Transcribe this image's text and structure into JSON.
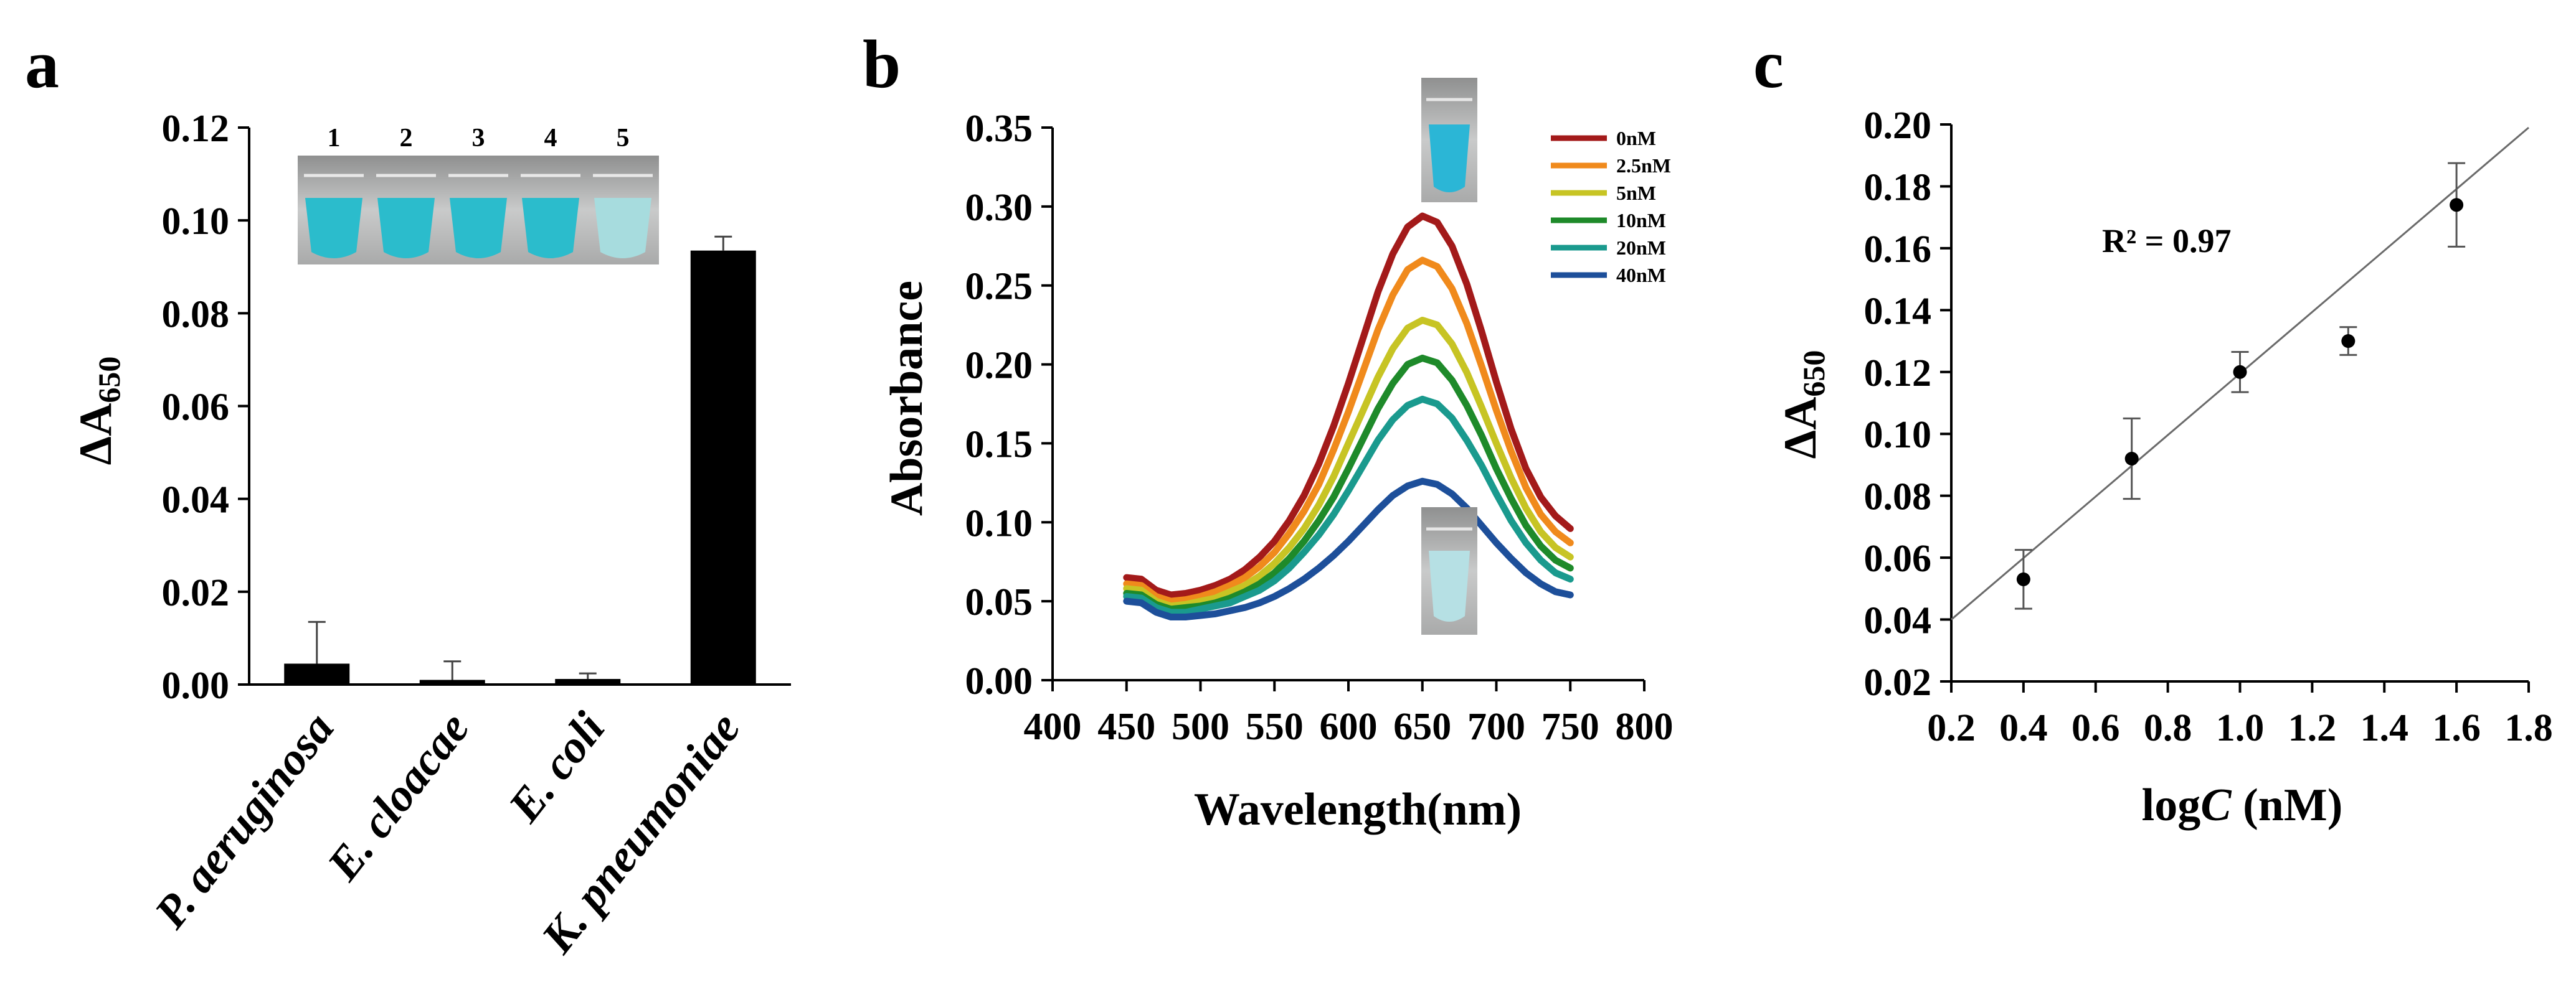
{
  "chart_data": [
    {
      "panel": "a",
      "type": "bar",
      "ylabel": "ΔA650",
      "ylabel_main": "ΔA",
      "ylabel_sub": "650",
      "ylim": [
        0,
        0.12
      ],
      "yticks": [
        "0.00",
        "0.02",
        "0.04",
        "0.06",
        "0.08",
        "0.10",
        "0.12"
      ],
      "categories": [
        "P. aeruginosa",
        "E. cloacae",
        "E. coli",
        "K. pneumoniae"
      ],
      "values": [
        0.0045,
        0.001,
        0.0012,
        0.0935
      ],
      "errors": [
        0.009,
        0.004,
        0.0012,
        0.003
      ],
      "inset_tube_labels": [
        "1",
        "2",
        "3",
        "4",
        "5"
      ],
      "tube_colors": [
        "#2bbccc",
        "#2bbccc",
        "#2bbccc",
        "#2bbccc",
        "#a7dcde"
      ]
    },
    {
      "panel": "b",
      "type": "line",
      "xlabel": "Wavelength(nm)",
      "ylabel": "Absorbance",
      "xlim": [
        400,
        800
      ],
      "ylim": [
        0,
        0.35
      ],
      "xticks": [
        "400",
        "450",
        "500",
        "550",
        "600",
        "650",
        "700",
        "750",
        "800"
      ],
      "yticks": [
        "0.00",
        "0.05",
        "0.10",
        "0.15",
        "0.20",
        "0.25",
        "0.30",
        "0.35"
      ],
      "x": [
        450,
        460,
        470,
        480,
        490,
        500,
        510,
        520,
        530,
        540,
        550,
        560,
        570,
        580,
        590,
        600,
        610,
        620,
        630,
        640,
        650,
        660,
        670,
        680,
        690,
        700,
        710,
        720,
        730,
        740,
        750
      ],
      "series": [
        {
          "name": "0nM",
          "color": "#a31a1a",
          "values": [
            0.065,
            0.064,
            0.057,
            0.054,
            0.055,
            0.057,
            0.06,
            0.064,
            0.07,
            0.078,
            0.088,
            0.101,
            0.117,
            0.137,
            0.161,
            0.188,
            0.217,
            0.246,
            0.27,
            0.287,
            0.294,
            0.29,
            0.275,
            0.251,
            0.221,
            0.189,
            0.159,
            0.134,
            0.116,
            0.104,
            0.096
          ]
        },
        {
          "name": "2.5nM",
          "color": "#f08a1c",
          "values": [
            0.061,
            0.06,
            0.053,
            0.05,
            0.051,
            0.053,
            0.056,
            0.06,
            0.065,
            0.072,
            0.081,
            0.093,
            0.107,
            0.124,
            0.146,
            0.17,
            0.196,
            0.222,
            0.244,
            0.26,
            0.266,
            0.262,
            0.248,
            0.226,
            0.199,
            0.171,
            0.145,
            0.122,
            0.105,
            0.094,
            0.087
          ]
        },
        {
          "name": "5nM",
          "color": "#c7c424",
          "values": [
            0.058,
            0.057,
            0.05,
            0.047,
            0.048,
            0.05,
            0.052,
            0.056,
            0.06,
            0.066,
            0.074,
            0.084,
            0.096,
            0.111,
            0.129,
            0.15,
            0.171,
            0.192,
            0.21,
            0.223,
            0.228,
            0.225,
            0.213,
            0.195,
            0.173,
            0.15,
            0.128,
            0.109,
            0.094,
            0.084,
            0.078
          ]
        },
        {
          "name": "10nM",
          "color": "#1e8a2a",
          "values": [
            0.055,
            0.054,
            0.048,
            0.045,
            0.046,
            0.047,
            0.049,
            0.052,
            0.056,
            0.061,
            0.068,
            0.077,
            0.088,
            0.101,
            0.116,
            0.134,
            0.153,
            0.172,
            0.188,
            0.2,
            0.204,
            0.201,
            0.19,
            0.174,
            0.155,
            0.134,
            0.115,
            0.098,
            0.085,
            0.076,
            0.071
          ]
        },
        {
          "name": "20nM",
          "color": "#1a9a8e",
          "values": [
            0.053,
            0.052,
            0.046,
            0.043,
            0.043,
            0.045,
            0.047,
            0.049,
            0.053,
            0.057,
            0.063,
            0.071,
            0.081,
            0.092,
            0.105,
            0.12,
            0.136,
            0.152,
            0.165,
            0.174,
            0.178,
            0.175,
            0.166,
            0.152,
            0.136,
            0.118,
            0.101,
            0.087,
            0.076,
            0.068,
            0.064
          ]
        },
        {
          "name": "40nM",
          "color": "#1d4f9a",
          "values": [
            0.05,
            0.049,
            0.043,
            0.04,
            0.04,
            0.041,
            0.042,
            0.044,
            0.046,
            0.049,
            0.053,
            0.058,
            0.064,
            0.071,
            0.079,
            0.088,
            0.098,
            0.108,
            0.117,
            0.123,
            0.126,
            0.124,
            0.118,
            0.109,
            0.098,
            0.087,
            0.077,
            0.068,
            0.061,
            0.056,
            0.054
          ]
        }
      ]
    },
    {
      "panel": "c",
      "type": "scatter",
      "xlabel": "logC (nM)",
      "xlabel_pre": "log",
      "xlabel_var": "C",
      "xlabel_post": " (nM)",
      "ylabel": "ΔA650",
      "ylabel_main": "ΔA",
      "ylabel_sub": "650",
      "xlim": [
        0.2,
        1.8
      ],
      "ylim": [
        0.02,
        0.2
      ],
      "xticks": [
        "0.2",
        "0.4",
        "0.6",
        "0.8",
        "1.0",
        "1.2",
        "1.4",
        "1.6",
        "1.8"
      ],
      "yticks": [
        "0.02",
        "0.04",
        "0.06",
        "0.08",
        "0.10",
        "0.12",
        "0.14",
        "0.16",
        "0.18",
        "0.20"
      ],
      "x": [
        0.4,
        0.7,
        1.0,
        1.3,
        1.6
      ],
      "y": [
        0.053,
        0.092,
        0.12,
        0.13,
        0.174
      ],
      "errors": [
        0.0095,
        0.013,
        0.0065,
        0.0045,
        0.0135
      ],
      "fit": {
        "x": [
          0.2,
          1.8
        ],
        "y": [
          0.04,
          0.199
        ]
      },
      "annotation": "R² = 0.97"
    }
  ],
  "panels": {
    "a": "a",
    "b": "b",
    "c": "c"
  }
}
